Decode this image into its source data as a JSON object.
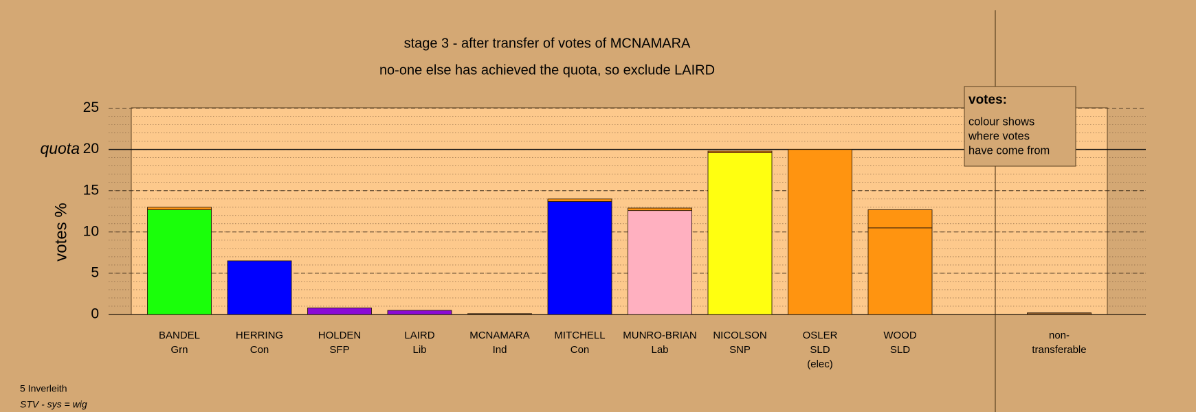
{
  "chart_data": {
    "type": "stacked_bar",
    "title": "stage 3 - after transfer of votes of MCNAMARA",
    "subtitle": "no-one else has achieved the quota, so exclude LAIRD",
    "y_label": "votes %",
    "quota": 20,
    "quota_label": "quota",
    "ylim": [
      0,
      25
    ],
    "yticks": [
      0,
      5,
      10,
      15,
      20,
      25
    ],
    "minor_step": 1,
    "bars": [
      {
        "labels": [
          "BANDEL",
          "Grn"
        ],
        "segments": [
          {
            "color": "#1aff0a",
            "value": 12.7
          },
          {
            "color": "#ff9410",
            "value": 0.3
          }
        ]
      },
      {
        "labels": [
          "HERRING",
          "Con"
        ],
        "segments": [
          {
            "color": "#0000ff",
            "value": 6.5
          }
        ]
      },
      {
        "labels": [
          "HOLDEN",
          "SFP"
        ],
        "segments": [
          {
            "color": "#8a0ad6",
            "value": 0.8
          }
        ]
      },
      {
        "labels": [
          "LAIRD",
          "Lib"
        ],
        "segments": [
          {
            "color": "#8a0ad6",
            "value": 0.5
          }
        ]
      },
      {
        "labels": [
          "MCNAMARA",
          "Ind"
        ],
        "segments": [
          {
            "color": "#5a3a1a",
            "value": 0.1
          }
        ]
      },
      {
        "labels": [
          "MITCHELL",
          "Con"
        ],
        "segments": [
          {
            "color": "#0000ff",
            "value": 13.7
          },
          {
            "color": "#ff9410",
            "value": 0.3
          }
        ]
      },
      {
        "labels": [
          "MUNRO-BRIAN",
          "Lab"
        ],
        "segments": [
          {
            "color": "#ffb0c0",
            "value": 12.6
          },
          {
            "color": "#ff9410",
            "value": 0.3
          }
        ]
      },
      {
        "labels": [
          "NICOLSON",
          "SNP"
        ],
        "segments": [
          {
            "color": "#ffff10",
            "value": 19.6
          },
          {
            "color": "#ff9410",
            "value": 0.2
          }
        ]
      },
      {
        "labels": [
          "OSLER",
          "SLD",
          "(elec)"
        ],
        "segments": [
          {
            "color": "#ff9410",
            "value": 20
          }
        ]
      },
      {
        "labels": [
          "WOOD",
          "SLD"
        ],
        "segments": [
          {
            "color": "#ff9410",
            "value": 10.5
          },
          {
            "color": "#ff9410",
            "value": 2.2
          }
        ]
      }
    ],
    "nontransferable": {
      "labels": [
        "non-",
        "transferable"
      ],
      "segments": [
        {
          "color": "#8a5a2a",
          "value": 0.2
        }
      ]
    },
    "legend": {
      "title": "votes:",
      "lines": [
        "colour shows",
        "where votes",
        "have come from"
      ]
    },
    "notes": [
      "5 Inverleith",
      "STV - sys = wig"
    ]
  }
}
